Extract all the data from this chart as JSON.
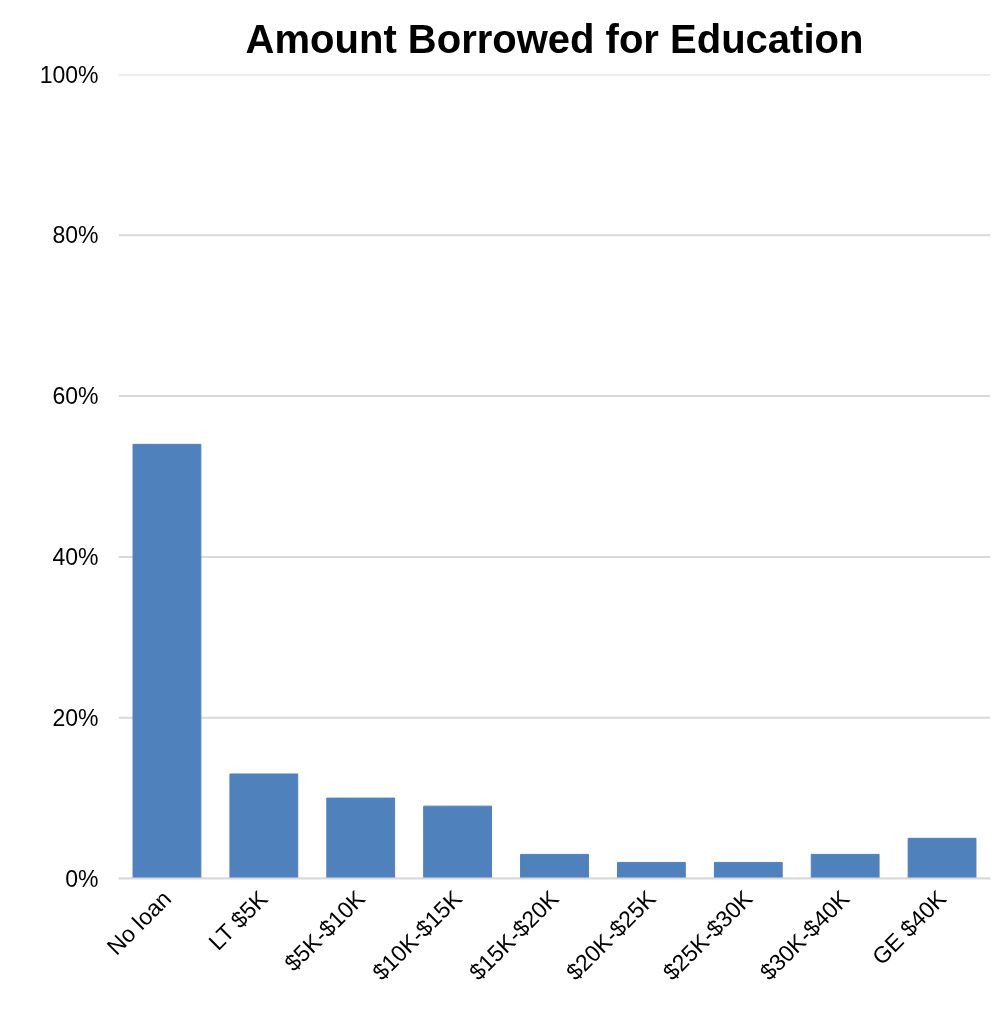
{
  "chart_data": {
    "type": "bar",
    "title": "Amount Borrowed for Education",
    "categories": [
      "No loan",
      "LT $5K",
      "$5K-$10K",
      "$10K-$15K",
      "$15K-$20K",
      "$20K-$25K",
      "$25K-$30K",
      "$30K-$40K",
      "GE $40K"
    ],
    "values": [
      54,
      13,
      10,
      9,
      3,
      2,
      2,
      3,
      5
    ],
    "color": "#4f81bd",
    "ylim": [
      0,
      100
    ],
    "yticks": [
      {
        "value": 0,
        "label": "0%"
      },
      {
        "value": 20,
        "label": "20%"
      },
      {
        "value": 40,
        "label": "40%"
      },
      {
        "value": 60,
        "label": "60%"
      },
      {
        "value": 80,
        "label": "80%"
      },
      {
        "value": 100,
        "label": "100%"
      }
    ],
    "grid": "y"
  }
}
